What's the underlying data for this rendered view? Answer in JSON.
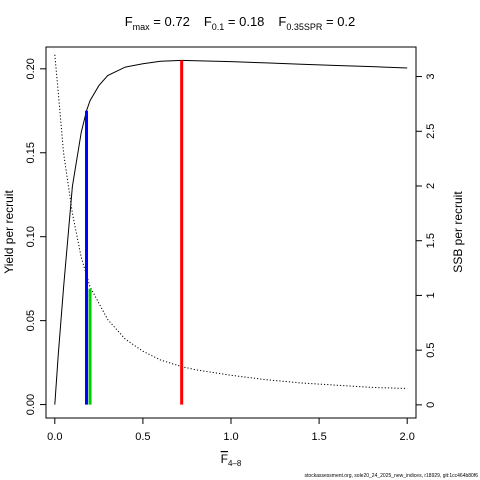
{
  "chart_data": {
    "type": "line",
    "title": {
      "parts": [
        {
          "base": "F",
          "sub": "max",
          "eq": " = 0.72"
        },
        {
          "base": "F",
          "sub": "0.1",
          "eq": " = 0.18"
        },
        {
          "base": "F",
          "sub": "0.35SPR",
          "eq": " = 0.2"
        }
      ]
    },
    "xlabel": {
      "base": "F",
      "sub": "4–8"
    },
    "ylabel": "Yield per recruit",
    "y2label": "SSB per recruit",
    "xlim": [
      -0.05,
      2.05
    ],
    "ylim": [
      -0.008,
      0.213
    ],
    "y2lim": [
      -0.12,
      3.27
    ],
    "x_ticks": [
      "0.0",
      "0.5",
      "1.0",
      "1.5",
      "2.0"
    ],
    "y_ticks": [
      "0.00",
      "0.05",
      "0.10",
      "0.15",
      "0.20"
    ],
    "y2_ticks": [
      "0",
      "0.5",
      "1",
      "1.5",
      "2",
      "2.5",
      "3"
    ],
    "series": [
      {
        "axis": "left",
        "style": "solid",
        "color": "#000000",
        "x": [
          0.0,
          0.02,
          0.05,
          0.1,
          0.15,
          0.18,
          0.2,
          0.25,
          0.3,
          0.4,
          0.5,
          0.6,
          0.72,
          0.8,
          1.0,
          1.2,
          1.4,
          1.6,
          1.8,
          2.0
        ],
        "y": [
          0.0,
          0.03,
          0.07,
          0.13,
          0.162,
          0.175,
          0.181,
          0.19,
          0.196,
          0.201,
          0.203,
          0.2045,
          0.205,
          0.2048,
          0.2043,
          0.2035,
          0.2027,
          0.202,
          0.2013,
          0.2005
        ]
      },
      {
        "axis": "right",
        "style": "dotted",
        "color": "#000000",
        "x": [
          0.0,
          0.02,
          0.05,
          0.1,
          0.15,
          0.2,
          0.3,
          0.4,
          0.5,
          0.6,
          0.72,
          0.8,
          1.0,
          1.2,
          1.4,
          1.6,
          1.8,
          2.0
        ],
        "y": [
          3.2,
          2.85,
          2.3,
          1.75,
          1.35,
          1.08,
          0.78,
          0.6,
          0.49,
          0.41,
          0.35,
          0.32,
          0.27,
          0.23,
          0.2,
          0.18,
          0.16,
          0.15
        ]
      }
    ],
    "reference_lines": [
      {
        "x": 0.72,
        "y_top": 0.205,
        "color": "#ff0000"
      },
      {
        "x": 0.18,
        "y_top": 0.175,
        "color": "#0000ff"
      },
      {
        "x": 0.2,
        "y_top": 0.069,
        "color": "#00cd00"
      }
    ],
    "grid": false,
    "legend": "none"
  },
  "footnote": "stockassessment.org, sole20_24_2025_new_indices, r18929, git:1cc464b80f6"
}
